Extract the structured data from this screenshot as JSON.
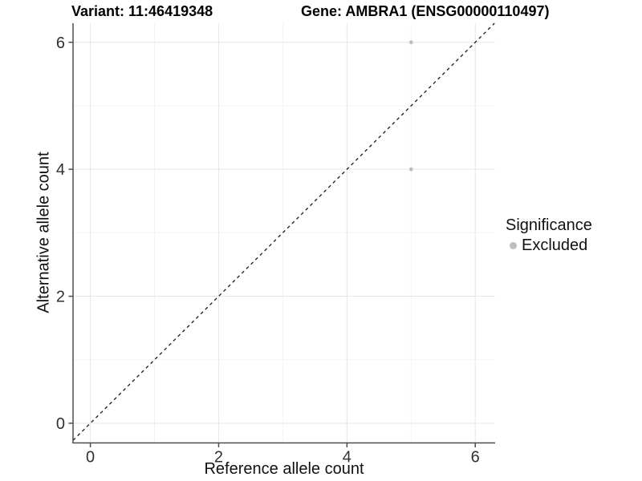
{
  "header": {
    "title_left": "Variant: 11:46419348",
    "title_right": "Gene: AMBRA1 (ENSG00000110497)"
  },
  "chart_data": {
    "type": "scatter",
    "title": "Variant: 11:46419348",
    "subtitle": "Gene: AMBRA1 (ENSG00000110497)",
    "xlabel": "Reference allele count",
    "ylabel": "Alternative allele count",
    "xlim": [
      -0.27,
      6.31
    ],
    "ylim": [
      -0.31,
      6.3
    ],
    "x_ticks": [
      0,
      2,
      4,
      6
    ],
    "x_minor_ticks": [
      1,
      3,
      5
    ],
    "y_ticks": [
      0,
      2,
      4,
      6
    ],
    "y_minor_ticks": [
      1,
      3,
      5
    ],
    "grid": "major_and_minor",
    "legend_position": "right",
    "series": [
      {
        "name": "Excluded",
        "color": "#bfbfbf",
        "points": [
          {
            "x": 5,
            "y": 6
          },
          {
            "x": 5,
            "y": 4
          }
        ]
      }
    ],
    "reference_line": {
      "slope": 1,
      "intercept": 0,
      "style": "dashed",
      "color": "#1a1a1a"
    },
    "legend": {
      "title": "Significance",
      "items": [
        {
          "label": "Excluded",
          "color": "#bfbfbf"
        }
      ]
    }
  },
  "colors": {
    "background": "#ffffff",
    "grid_major": "#e6e6e6",
    "grid_minor": "#f3f3f3",
    "axis_line": "#4d4d4d",
    "tick_mark": "#4d4d4d",
    "tick_label": "#303030",
    "point": "#bfbfbf",
    "dashed_line": "#1a1a1a"
  }
}
